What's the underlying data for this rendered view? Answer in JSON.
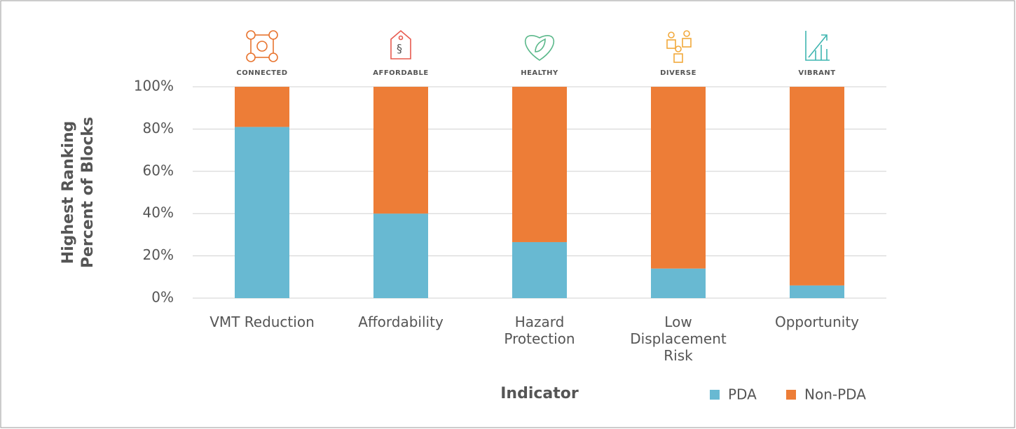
{
  "chart_data": {
    "type": "stacked_bar",
    "ylabel": [
      "Highest Ranking",
      "Percent of  Blocks"
    ],
    "xlabel": "Indicator",
    "categories": [
      "VMT Reduction",
      "Affordability",
      "Hazard Protection",
      "Low Displacement Risk",
      "Opportunity"
    ],
    "icons": [
      {
        "label": "CONNECTED",
        "color": "#e8742f"
      },
      {
        "label": "AFFORDABLE",
        "color": "#e85a4f"
      },
      {
        "label": "HEALTHY",
        "color": "#5ab88a"
      },
      {
        "label": "DIVERSE",
        "color": "#f2a93b"
      },
      {
        "label": "VIBRANT",
        "color": "#3fb5b0"
      }
    ],
    "series": [
      {
        "name": "PDA",
        "color": "#68b9d2",
        "values": [
          81,
          40,
          26.5,
          14,
          6
        ]
      },
      {
        "name": "Non-PDA",
        "color": "#ed7d37",
        "values": [
          19,
          60,
          73.5,
          86,
          94
        ]
      }
    ],
    "ylim": [
      0,
      100
    ],
    "yticks": [
      {
        "value": 0,
        "label": "0%"
      },
      {
        "value": 20,
        "label": "20%"
      },
      {
        "value": 40,
        "label": "40%"
      },
      {
        "value": 60,
        "label": "60%"
      },
      {
        "value": 80,
        "label": "80%"
      },
      {
        "value": 100,
        "label": "100%"
      }
    ],
    "grid": true,
    "legend": "bottom-right"
  }
}
